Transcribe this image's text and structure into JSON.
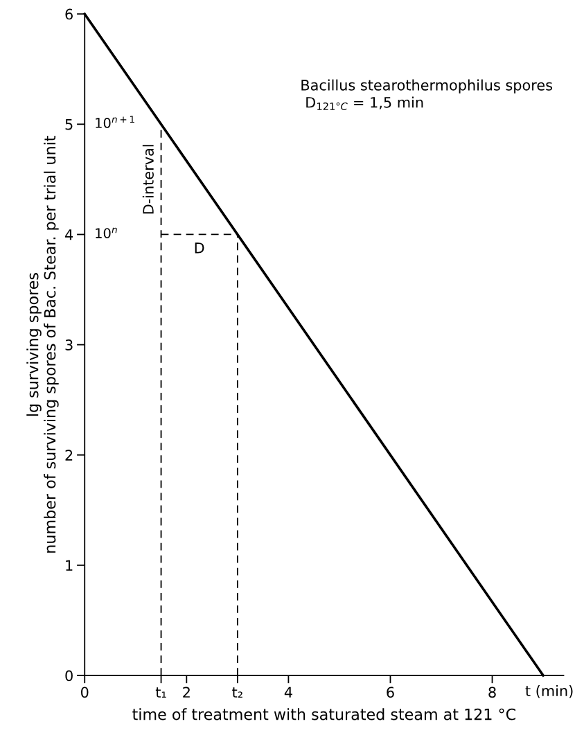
{
  "chart_data": {
    "type": "line",
    "title": "Bacillus stearothermophilus spores",
    "subtitle": "D$_{121°C}$ = 1,5 min",
    "xlabel": "time of treatment with saturated steam at 121 °C",
    "ylabel": "lg surviving spores\nnumber of surviving spores of Bac. Stear. per trial unit",
    "series": [
      {
        "x": [
          0,
          9
        ],
        "values": [
          6,
          0
        ],
        "color": "#000000",
        "line_style": "solid"
      },
      {
        "x": [
          1.5,
          1.5
        ],
        "values": [
          0,
          5
        ],
        "color": "#000000",
        "line_style": "dashed"
      },
      {
        "x": [
          3,
          3
        ],
        "values": [
          0,
          4
        ],
        "color": "#000000",
        "line_style": "dashed"
      },
      {
        "x": [
          1.5,
          3
        ],
        "values": [
          4,
          4
        ],
        "color": "#000000",
        "line_style": "dashed"
      }
    ],
    "xlim": [
      0,
      9.4
    ],
    "ylim": [
      0,
      6
    ],
    "xticks": [
      0,
      {
        "value": 1.5,
        "label": "t₁"
      },
      2,
      {
        "value": 3,
        "label": "t₂"
      },
      4,
      6,
      8
    ],
    "yticks": [
      0,
      1,
      2,
      3,
      4,
      5,
      6
    ],
    "annotations": [
      "10$^{n+1}$",
      "10$^{n}$",
      {
        "text": "D-interval",
        "x": 1.5,
        "y": 4.5
      },
      {
        "text": "D",
        "x": 2.25,
        "y": 4
      },
      "t (min)"
    ],
    "grid": false
  }
}
